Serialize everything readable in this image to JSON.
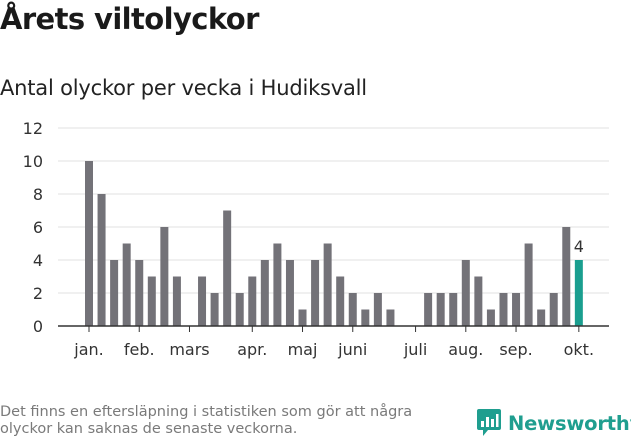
{
  "title": "Årets viltolyckor",
  "subtitle": "Antal olyckor per vecka i Hudiksvall",
  "footnote": "Det finns en eftersläpning i statistiken som gör att några olyckor kan saknas de senaste veckorna.",
  "brand": {
    "name": "Newsworthy",
    "icon": "newsworthy-chart-icon",
    "color": "#1f9e8f"
  },
  "chart_data": {
    "type": "bar",
    "title": "Antal olyckor per vecka i Hudiksvall",
    "xlabel": "",
    "ylabel": "",
    "ylim": [
      0,
      12
    ],
    "yticks": [
      0,
      2,
      4,
      6,
      8,
      10,
      12
    ],
    "grid": true,
    "weeks": [
      1,
      2,
      3,
      4,
      5,
      6,
      7,
      8,
      9,
      10,
      11,
      12,
      13,
      14,
      15,
      16,
      17,
      18,
      19,
      20,
      21,
      22,
      23,
      24,
      25,
      26,
      27,
      28,
      29,
      30,
      31,
      32,
      33,
      34,
      35,
      36,
      37,
      38,
      39,
      40
    ],
    "values": [
      10,
      8,
      4,
      5,
      4,
      3,
      6,
      3,
      0,
      3,
      2,
      7,
      2,
      3,
      4,
      5,
      4,
      1,
      4,
      5,
      3,
      2,
      1,
      2,
      1,
      0,
      0,
      2,
      2,
      2,
      4,
      3,
      1,
      2,
      2,
      5,
      1,
      2,
      6,
      4
    ],
    "highlight_index": 39,
    "highlight_label": "4",
    "month_labels": [
      {
        "label": "jan.",
        "week": 1
      },
      {
        "label": "feb.",
        "week": 5
      },
      {
        "label": "mars",
        "week": 9
      },
      {
        "label": "apr.",
        "week": 14
      },
      {
        "label": "maj",
        "week": 18
      },
      {
        "label": "juni",
        "week": 22
      },
      {
        "label": "juli",
        "week": 27
      },
      {
        "label": "aug.",
        "week": 31
      },
      {
        "label": "sep.",
        "week": 35
      },
      {
        "label": "okt.",
        "week": 40
      }
    ],
    "colors": {
      "bar": "#737278",
      "highlight": "#1a9e8f",
      "grid": "#e2e2e2",
      "axis": "#333333",
      "text": "#333333"
    }
  }
}
